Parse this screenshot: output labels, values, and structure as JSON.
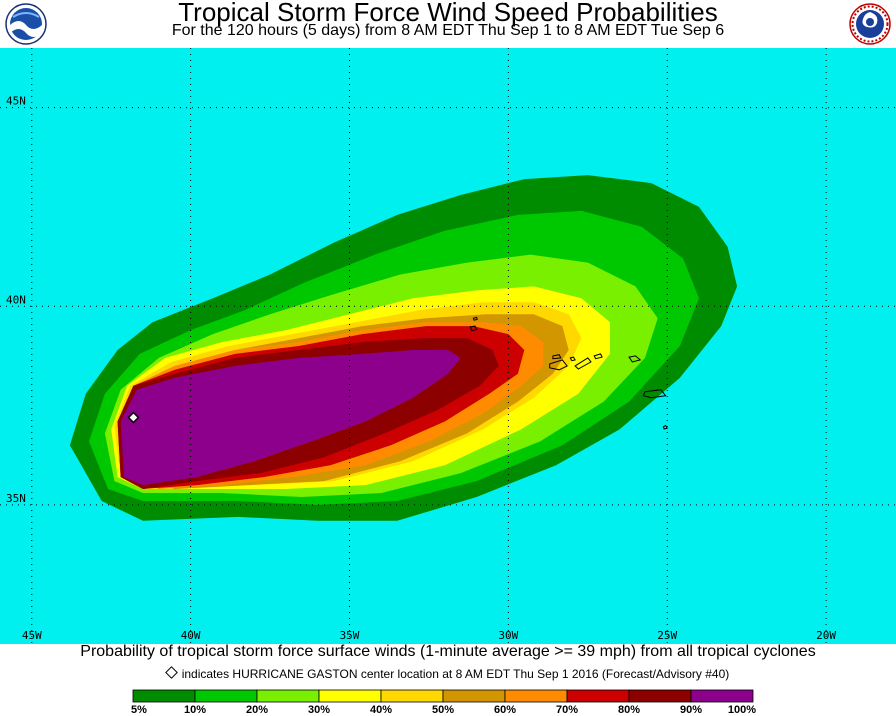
{
  "header": {
    "title": "Tropical Storm Force Wind Speed Probabilities",
    "subtitle": "For the 120 hours (5 days) from 8 AM EDT Thu Sep 1 to 8 AM EDT Tue Sep 6"
  },
  "logos": {
    "left": "noaa-logo",
    "right": "nws-logo"
  },
  "map": {
    "ocean_color": "#00f0f0",
    "lat_range": [
      31.5,
      46.5
    ],
    "lon_range": [
      -46.0,
      -17.8
    ],
    "latitude_labels": [
      {
        "lat": 45,
        "label": "45N"
      },
      {
        "lat": 40,
        "label": "40N"
      },
      {
        "lat": 35,
        "label": "35N"
      }
    ],
    "longitude_labels": [
      {
        "lon": -45,
        "label": "45W"
      },
      {
        "lon": -40,
        "label": "40W"
      },
      {
        "lon": -35,
        "label": "35W"
      },
      {
        "lon": -30,
        "label": "30W"
      },
      {
        "lon": -25,
        "label": "25W"
      },
      {
        "lon": -20,
        "label": "20W"
      }
    ],
    "probability_contours": [
      {
        "level": 5,
        "color": "#008c00",
        "outline": [
          [
            -43.8,
            36.5
          ],
          [
            -43.3,
            37.8
          ],
          [
            -42.3,
            38.9
          ],
          [
            -41.2,
            39.6
          ],
          [
            -39.3,
            40.2
          ],
          [
            -37.5,
            40.8
          ],
          [
            -35.5,
            41.6
          ],
          [
            -33.5,
            42.3
          ],
          [
            -31.5,
            42.8
          ],
          [
            -29.5,
            43.2
          ],
          [
            -27.5,
            43.3
          ],
          [
            -25.5,
            43.1
          ],
          [
            -24.0,
            42.5
          ],
          [
            -23.1,
            41.5
          ],
          [
            -22.8,
            40.5
          ],
          [
            -23.3,
            39.5
          ],
          [
            -24.6,
            38.2
          ],
          [
            -26.5,
            36.9
          ],
          [
            -28.5,
            36.0
          ],
          [
            -31.0,
            35.2
          ],
          [
            -33.5,
            34.6
          ],
          [
            -36.0,
            34.6
          ],
          [
            -38.5,
            34.7
          ],
          [
            -41.5,
            34.6
          ],
          [
            -42.8,
            35.1
          ]
        ]
      },
      {
        "level": 10,
        "color": "#00c800",
        "outline": [
          [
            -43.2,
            36.6
          ],
          [
            -42.7,
            37.8
          ],
          [
            -41.6,
            38.8
          ],
          [
            -40.0,
            39.4
          ],
          [
            -38.3,
            39.9
          ],
          [
            -36.4,
            40.6
          ],
          [
            -34.2,
            41.3
          ],
          [
            -32.0,
            41.9
          ],
          [
            -29.7,
            42.3
          ],
          [
            -27.7,
            42.4
          ],
          [
            -25.8,
            42.0
          ],
          [
            -24.5,
            41.2
          ],
          [
            -24.0,
            40.2
          ],
          [
            -24.6,
            39.0
          ],
          [
            -26.2,
            37.6
          ],
          [
            -28.3,
            36.5
          ],
          [
            -31.0,
            35.6
          ],
          [
            -33.5,
            35.1
          ],
          [
            -36.0,
            35.0
          ],
          [
            -38.5,
            35.1
          ],
          [
            -41.5,
            35.1
          ],
          [
            -42.6,
            35.4
          ]
        ]
      },
      {
        "level": 20,
        "color": "#78f000",
        "outline": [
          [
            -42.7,
            36.8
          ],
          [
            -42.2,
            37.9
          ],
          [
            -41.0,
            38.7
          ],
          [
            -39.3,
            39.3
          ],
          [
            -37.5,
            39.8
          ],
          [
            -35.5,
            40.3
          ],
          [
            -33.4,
            40.8
          ],
          [
            -31.3,
            41.1
          ],
          [
            -29.3,
            41.3
          ],
          [
            -27.5,
            41.1
          ],
          [
            -26.0,
            40.5
          ],
          [
            -25.3,
            39.7
          ],
          [
            -25.7,
            38.7
          ],
          [
            -27.0,
            37.6
          ],
          [
            -29.0,
            36.6
          ],
          [
            -31.5,
            35.8
          ],
          [
            -34.0,
            35.3
          ],
          [
            -36.5,
            35.2
          ],
          [
            -39.0,
            35.3
          ],
          [
            -41.5,
            35.3
          ],
          [
            -42.4,
            35.6
          ]
        ]
      },
      {
        "level": 30,
        "color": "#ffff00",
        "outline": [
          [
            -42.5,
            36.9
          ],
          [
            -42.0,
            38.0
          ],
          [
            -40.8,
            38.7
          ],
          [
            -39.0,
            39.1
          ],
          [
            -37.0,
            39.4
          ],
          [
            -35.0,
            39.8
          ],
          [
            -33.0,
            40.2
          ],
          [
            -31.0,
            40.4
          ],
          [
            -29.2,
            40.5
          ],
          [
            -27.7,
            40.2
          ],
          [
            -26.8,
            39.6
          ],
          [
            -26.8,
            38.8
          ],
          [
            -27.8,
            37.8
          ],
          [
            -29.6,
            36.9
          ],
          [
            -32.0,
            36.0
          ],
          [
            -34.5,
            35.5
          ],
          [
            -37.0,
            35.4
          ],
          [
            -39.5,
            35.4
          ],
          [
            -41.5,
            35.4
          ],
          [
            -42.3,
            35.7
          ]
        ]
      },
      {
        "level": 40,
        "color": "#ffd800",
        "outline": [
          [
            -42.4,
            37.0
          ],
          [
            -41.9,
            38.0
          ],
          [
            -40.6,
            38.6
          ],
          [
            -38.8,
            39.0
          ],
          [
            -36.8,
            39.3
          ],
          [
            -34.8,
            39.6
          ],
          [
            -32.8,
            39.9
          ],
          [
            -30.8,
            40.1
          ],
          [
            -29.2,
            40.1
          ],
          [
            -28.1,
            39.8
          ],
          [
            -27.7,
            39.2
          ],
          [
            -28.1,
            38.5
          ],
          [
            -29.2,
            37.7
          ],
          [
            -30.8,
            36.9
          ],
          [
            -33.0,
            36.1
          ],
          [
            -35.5,
            35.6
          ],
          [
            -38.0,
            35.5
          ],
          [
            -40.5,
            35.4
          ],
          [
            -42.2,
            35.7
          ]
        ]
      },
      {
        "level": 50,
        "color": "#d29600",
        "outline": [
          [
            -42.3,
            37.0
          ],
          [
            -41.8,
            38.0
          ],
          [
            -40.5,
            38.5
          ],
          [
            -38.6,
            38.9
          ],
          [
            -36.6,
            39.2
          ],
          [
            -34.6,
            39.5
          ],
          [
            -32.6,
            39.7
          ],
          [
            -30.7,
            39.8
          ],
          [
            -29.2,
            39.8
          ],
          [
            -28.3,
            39.5
          ],
          [
            -28.1,
            38.9
          ],
          [
            -28.6,
            38.3
          ],
          [
            -29.7,
            37.6
          ],
          [
            -31.3,
            36.8
          ],
          [
            -33.4,
            36.1
          ],
          [
            -35.8,
            35.6
          ],
          [
            -38.2,
            35.5
          ],
          [
            -40.5,
            35.4
          ],
          [
            -42.2,
            35.7
          ]
        ]
      },
      {
        "level": 60,
        "color": "#ff8c00",
        "outline": [
          [
            -42.3,
            37.1
          ],
          [
            -41.8,
            38.0
          ],
          [
            -40.5,
            38.5
          ],
          [
            -38.6,
            38.9
          ],
          [
            -36.6,
            39.1
          ],
          [
            -34.6,
            39.4
          ],
          [
            -32.6,
            39.6
          ],
          [
            -30.8,
            39.6
          ],
          [
            -29.6,
            39.5
          ],
          [
            -28.9,
            39.1
          ],
          [
            -28.9,
            38.5
          ],
          [
            -29.6,
            38.0
          ],
          [
            -30.8,
            37.3
          ],
          [
            -32.5,
            36.6
          ],
          [
            -34.5,
            36.0
          ],
          [
            -36.8,
            35.7
          ],
          [
            -39.0,
            35.5
          ],
          [
            -41.0,
            35.4
          ],
          [
            -42.2,
            35.7
          ]
        ]
      },
      {
        "level": 70,
        "color": "#cc0000",
        "outline": [
          [
            -42.3,
            37.1
          ],
          [
            -41.8,
            38.0
          ],
          [
            -40.5,
            38.4
          ],
          [
            -38.6,
            38.8
          ],
          [
            -36.6,
            39.0
          ],
          [
            -34.6,
            39.3
          ],
          [
            -32.6,
            39.5
          ],
          [
            -31.1,
            39.5
          ],
          [
            -30.0,
            39.3
          ],
          [
            -29.5,
            38.9
          ],
          [
            -29.7,
            38.3
          ],
          [
            -30.6,
            37.8
          ],
          [
            -32.0,
            37.1
          ],
          [
            -33.7,
            36.5
          ],
          [
            -35.6,
            36.0
          ],
          [
            -37.7,
            35.7
          ],
          [
            -39.8,
            35.5
          ],
          [
            -41.5,
            35.4
          ],
          [
            -42.2,
            35.7
          ]
        ]
      },
      {
        "level": 80,
        "color": "#8c0000",
        "outline": [
          [
            -42.3,
            37.1
          ],
          [
            -41.8,
            38.0
          ],
          [
            -40.5,
            38.3
          ],
          [
            -38.6,
            38.7
          ],
          [
            -36.6,
            38.9
          ],
          [
            -34.6,
            39.1
          ],
          [
            -32.6,
            39.2
          ],
          [
            -31.3,
            39.2
          ],
          [
            -30.5,
            38.9
          ],
          [
            -30.3,
            38.5
          ],
          [
            -30.9,
            38.0
          ],
          [
            -32.2,
            37.4
          ],
          [
            -33.9,
            36.8
          ],
          [
            -35.8,
            36.2
          ],
          [
            -37.8,
            35.8
          ],
          [
            -39.8,
            35.6
          ],
          [
            -41.5,
            35.4
          ],
          [
            -42.2,
            35.7
          ]
        ]
      },
      {
        "level": 90,
        "color": "#8c008c",
        "outline": [
          [
            -42.2,
            37.1
          ],
          [
            -41.7,
            37.9
          ],
          [
            -40.5,
            38.2
          ],
          [
            -38.6,
            38.5
          ],
          [
            -36.6,
            38.7
          ],
          [
            -34.6,
            38.8
          ],
          [
            -33.0,
            38.9
          ],
          [
            -31.9,
            38.9
          ],
          [
            -31.5,
            38.7
          ],
          [
            -31.9,
            38.3
          ],
          [
            -33.0,
            37.7
          ],
          [
            -34.5,
            37.1
          ],
          [
            -36.2,
            36.6
          ],
          [
            -38.0,
            36.1
          ],
          [
            -39.8,
            35.7
          ],
          [
            -41.5,
            35.5
          ],
          [
            -42.1,
            35.7
          ]
        ]
      }
    ],
    "islands": [
      [
        [
          -28.7,
          38.55
        ],
        [
          -28.3,
          38.65
        ],
        [
          -28.15,
          38.5
        ],
        [
          -28.4,
          38.4
        ],
        [
          -28.7,
          38.45
        ]
      ],
      [
        [
          -28.6,
          38.75
        ],
        [
          -28.4,
          38.78
        ],
        [
          -28.35,
          38.7
        ],
        [
          -28.6,
          38.68
        ]
      ],
      [
        [
          -27.9,
          38.5
        ],
        [
          -27.5,
          38.7
        ],
        [
          -27.4,
          38.6
        ],
        [
          -27.8,
          38.42
        ]
      ],
      [
        [
          -27.3,
          38.75
        ],
        [
          -27.1,
          38.8
        ],
        [
          -27.05,
          38.72
        ],
        [
          -27.25,
          38.68
        ]
      ],
      [
        [
          -28.05,
          38.7
        ],
        [
          -27.95,
          38.72
        ],
        [
          -27.9,
          38.65
        ],
        [
          -28.0,
          38.63
        ]
      ],
      [
        [
          -26.2,
          38.72
        ],
        [
          -26.0,
          38.75
        ],
        [
          -25.85,
          38.65
        ],
        [
          -26.1,
          38.6
        ]
      ],
      [
        [
          -31.2,
          39.48
        ],
        [
          -31.05,
          39.5
        ],
        [
          -31.0,
          39.42
        ],
        [
          -31.15,
          39.38
        ]
      ],
      [
        [
          -31.1,
          39.7
        ],
        [
          -31.0,
          39.72
        ],
        [
          -30.98,
          39.67
        ],
        [
          -31.08,
          39.65
        ]
      ],
      [
        [
          -25.7,
          37.85
        ],
        [
          -25.2,
          37.9
        ],
        [
          -25.05,
          37.75
        ],
        [
          -25.5,
          37.7
        ],
        [
          -25.75,
          37.75
        ]
      ],
      [
        [
          -25.12,
          36.97
        ],
        [
          -25.05,
          37.0
        ],
        [
          -25.0,
          36.93
        ],
        [
          -25.1,
          36.91
        ]
      ]
    ],
    "storm_center": {
      "lat": 37.2,
      "lon": -41.8
    }
  },
  "caption": "Probability of tropical storm force surface winds (1-minute average >= 39 mph) from all tropical cyclones",
  "storm_note": "indicates HURRICANE GASTON center location at 8 AM EDT Thu Sep 1 2016 (Forecast/Advisory #40)",
  "legend": {
    "colors": [
      "#008c00",
      "#00c800",
      "#78f000",
      "#ffff00",
      "#ffd800",
      "#d29600",
      "#ff8c00",
      "#cc0000",
      "#8c0000",
      "#8c008c"
    ],
    "labels": [
      "5%",
      "10%",
      "20%",
      "30%",
      "40%",
      "50%",
      "60%",
      "70%",
      "80%",
      "90%",
      "100%"
    ]
  }
}
